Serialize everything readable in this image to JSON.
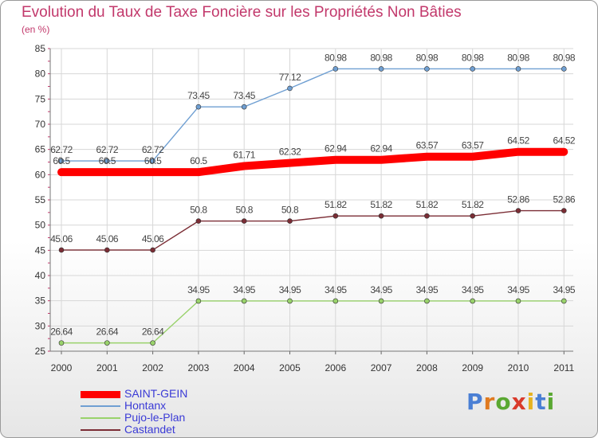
{
  "chart_data": {
    "type": "line",
    "title": "Evolution du Taux de Taxe Foncière sur les Propriétés Non Bâties",
    "subtitle": "(en %)",
    "categories": [
      "2000",
      "2001",
      "2002",
      "2003",
      "2004",
      "2005",
      "2006",
      "2007",
      "2008",
      "2009",
      "2010",
      "2011"
    ],
    "ylim": [
      25,
      85
    ],
    "yticks": [
      25,
      30,
      35,
      40,
      45,
      50,
      55,
      60,
      65,
      70,
      75,
      80,
      85
    ],
    "series": [
      {
        "name": "SAINT-GEIN",
        "color": "#ff0000",
        "values": [
          60.5,
          60.5,
          60.5,
          60.5,
          61.71,
          62.32,
          62.94,
          62.94,
          63.57,
          63.57,
          64.52,
          64.52
        ],
        "labels": [
          "60.5",
          "60.5",
          "60.5",
          "60.5",
          "61.71",
          "62.32",
          "62.94",
          "62.94",
          "63.57",
          "63.57",
          "64.52",
          "64.52"
        ]
      },
      {
        "name": "Hontanx",
        "color": "#6f9fd2",
        "values": [
          62.72,
          62.72,
          62.72,
          73.45,
          73.45,
          77.12,
          80.98,
          80.98,
          80.98,
          80.98,
          80.98,
          80.98
        ],
        "labels": [
          "62.72",
          "62.72",
          "62.72",
          "73.45",
          "73.45",
          "77.12",
          "80.98",
          "80.98",
          "80.98",
          "80.98",
          "80.98",
          "80.98"
        ]
      },
      {
        "name": "Pujo-le-Plan",
        "color": "#99d26b",
        "values": [
          26.64,
          26.64,
          26.64,
          34.95,
          34.95,
          34.95,
          34.95,
          34.95,
          34.95,
          34.95,
          34.95,
          34.95
        ],
        "labels": [
          "26.64",
          "26.64",
          "26.64",
          "34.95",
          "34.95",
          "34.95",
          "34.95",
          "34.95",
          "34.95",
          "34.95",
          "34.95",
          "34.95"
        ]
      },
      {
        "name": "Castandet",
        "color": "#7b2d35",
        "values": [
          45.06,
          45.06,
          45.06,
          50.8,
          50.8,
          50.8,
          51.82,
          51.82,
          51.82,
          51.82,
          52.86,
          52.86
        ],
        "labels": [
          "45.06",
          "45.06",
          "45.06",
          "50.8",
          "50.8",
          "50.8",
          "51.82",
          "51.82",
          "51.82",
          "51.82",
          "52.86",
          "52.86"
        ]
      }
    ],
    "grid": true,
    "legend_position": "bottom-left"
  },
  "legend": {
    "items": [
      {
        "label": "SAINT-GEIN",
        "color": "#ff0000"
      },
      {
        "label": "Hontanx",
        "color": "#6f9fd2"
      },
      {
        "label": "Pujo-le-Plan",
        "color": "#99d26b"
      },
      {
        "label": "Castandet",
        "color": "#7b2d35"
      }
    ]
  },
  "logo": {
    "letters": [
      "P",
      "r",
      "o",
      "x",
      "i",
      "t",
      "i"
    ],
    "colors": [
      "#4a7fd4",
      "#e07a1f",
      "#5aa832",
      "#d93a2b",
      "#e5b21f",
      "#4a7fd4",
      "#5aa832"
    ]
  }
}
